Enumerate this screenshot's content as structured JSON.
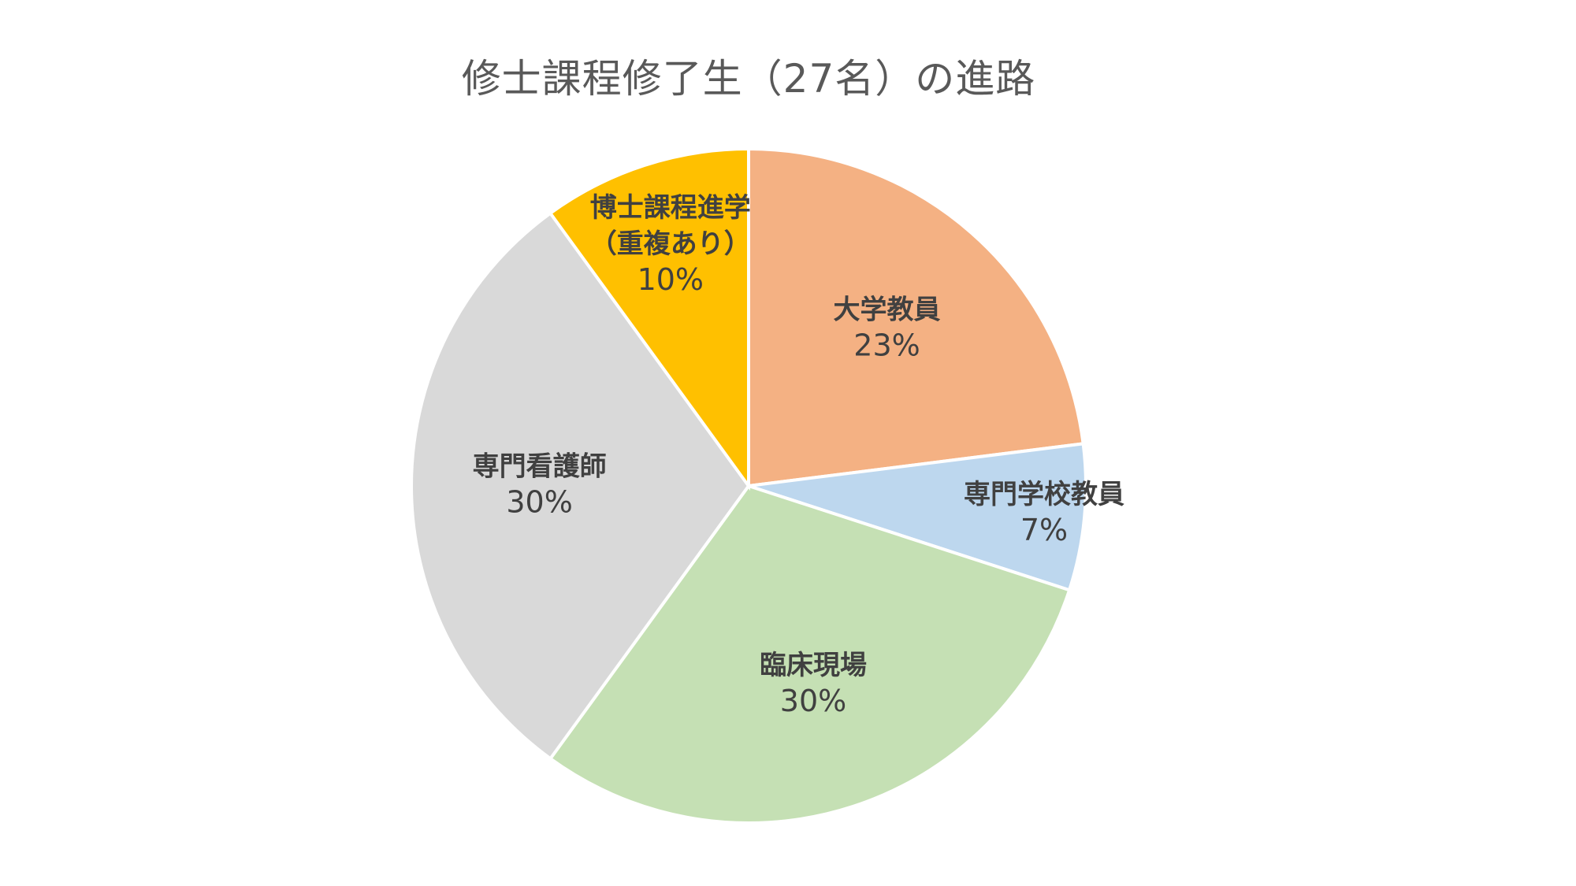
{
  "chart_data": {
    "type": "pie",
    "title": "修士課程修了生（27名）の進路",
    "slices": [
      {
        "label": "大学教員",
        "value": 23,
        "value_label": "23%",
        "color": "#F4B183"
      },
      {
        "label": "専門学校教員",
        "value": 7,
        "value_label": "7%",
        "color": "#BDD7EE"
      },
      {
        "label": "臨床現場",
        "value": 30,
        "value_label": "30%",
        "color": "#C5E0B4"
      },
      {
        "label": "専門看護師",
        "value": 30,
        "value_label": "30%",
        "color": "#D9D9D9"
      },
      {
        "label": "博士課程進学\n（重複あり）",
        "value": 10,
        "value_label": "10%",
        "color": "#FFC000"
      }
    ],
    "start_angle": "12 o'clock",
    "direction": "clockwise",
    "legend": "none"
  }
}
